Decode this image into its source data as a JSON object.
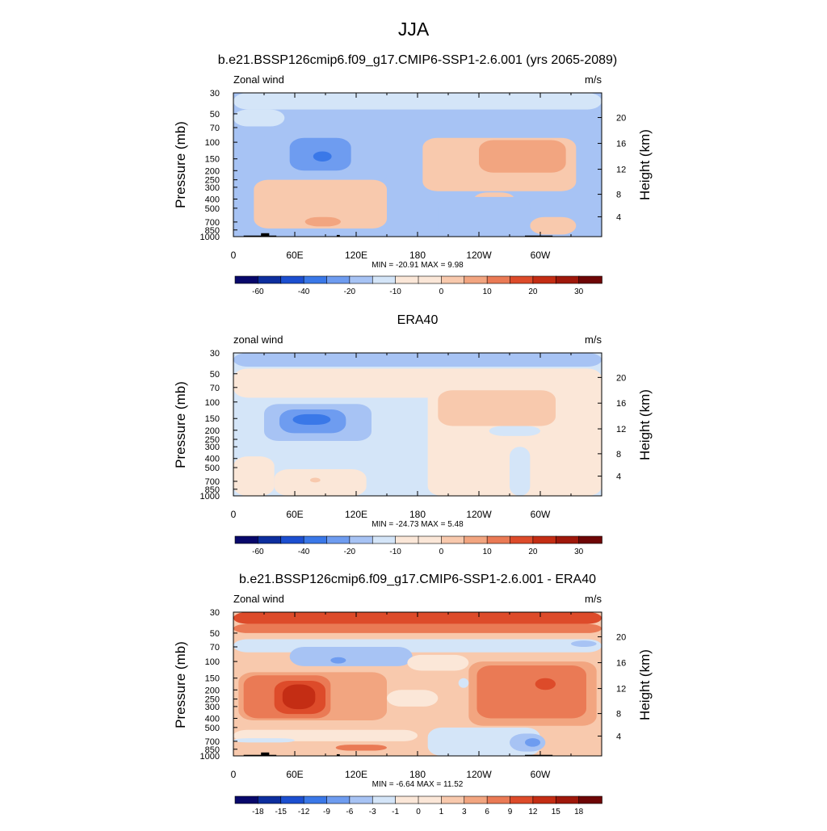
{
  "figure_title": "JJA",
  "colors": {
    "scale_full": [
      "#08086b",
      "#0d2e9e",
      "#1c4fd0",
      "#3a78e8",
      "#6e9cf0",
      "#a7c3f4",
      "#d4e5f8",
      "#fbe7d8",
      "#f8c9ad",
      "#f2a580",
      "#ea7a55",
      "#dd4b2a",
      "#c42d14",
      "#9f180b",
      "#6e0606"
    ]
  },
  "chart_data": [
    {
      "type": "contour",
      "title": "b.e21.BSSP126cmip6.f09_g17.CMIP6-SSP1-2.6.001 (yrs 2065-2089)",
      "left_label": "Zonal wind",
      "right_label": "m/s",
      "ylabel": "Pressure (mb)",
      "ylabel_right": "Height (km)",
      "x_ticks": [
        "0",
        "60E",
        "120E",
        "180",
        "120W",
        "60W"
      ],
      "x_tick_lons": [
        0,
        60,
        120,
        180,
        240,
        300
      ],
      "x_range": [
        0,
        360
      ],
      "y_ticks": [
        "30",
        "50",
        "70",
        "100",
        "150",
        "200",
        "250",
        "300",
        "400",
        "500",
        "700",
        "850",
        "1000"
      ],
      "y_tick_values": [
        30,
        50,
        70,
        100,
        150,
        200,
        250,
        300,
        400,
        500,
        700,
        850,
        1000
      ],
      "y_range": [
        30,
        1000
      ],
      "height_ticks": [
        "4",
        "8",
        "12",
        "16",
        "20"
      ],
      "height_values": [
        4,
        8,
        12,
        16,
        20
      ],
      "stats": "MIN = -20.91  MAX =   9.98",
      "min": -20.91,
      "max": 9.98,
      "background_level": 5,
      "colorbar_labels": [
        "-60",
        "-40",
        "-20",
        "-10",
        "0",
        "10",
        "20",
        "30"
      ],
      "colorbar_label_edges": [
        1,
        3,
        5,
        7,
        9,
        11,
        13,
        15
      ],
      "colorbar_levels": 16,
      "regions": [
        {
          "level": 6,
          "lon": [
            0,
            360
          ],
          "p": [
            30,
            45
          ]
        },
        {
          "level": 6,
          "lon": [
            0,
            50
          ],
          "p": [
            45,
            68
          ]
        },
        {
          "level": 5,
          "lon": [
            30,
            150
          ],
          "p": [
            70,
            280
          ]
        },
        {
          "level": 5,
          "lon": [
            80,
            190
          ],
          "p": [
            330,
            800
          ]
        },
        {
          "level": 5,
          "lon": [
            0,
            10
          ],
          "p": [
            150,
            230
          ]
        },
        {
          "level": 4,
          "lon": [
            55,
            115
          ],
          "p": [
            90,
            200
          ]
        },
        {
          "level": 3,
          "lon": [
            78,
            96
          ],
          "p": [
            125,
            160
          ]
        },
        {
          "level": 8,
          "lon": [
            185,
            335
          ],
          "p": [
            90,
            330
          ]
        },
        {
          "level": 9,
          "lon": [
            240,
            325
          ],
          "p": [
            95,
            210
          ]
        },
        {
          "level": 8,
          "lon": [
            20,
            150
          ],
          "p": [
            250,
            820
          ]
        },
        {
          "level": 9,
          "lon": [
            70,
            105
          ],
          "p": [
            620,
            780
          ]
        },
        {
          "level": 8,
          "lon": [
            235,
            275
          ],
          "p": [
            340,
            480
          ]
        },
        {
          "level": 8,
          "lon": [
            290,
            335
          ],
          "p": [
            620,
            950
          ]
        },
        {
          "level": 5,
          "lon": [
            200,
            290
          ],
          "p": [
            380,
            1000
          ]
        }
      ],
      "topography": [
        {
          "lon": [
            10,
            42
          ],
          "p": 975
        },
        {
          "lon": [
            27,
            35
          ],
          "p": 920
        },
        {
          "lon": [
            101,
            104
          ],
          "p": 960
        },
        {
          "lon": [
            285,
            312
          ],
          "p": 975
        }
      ]
    },
    {
      "type": "contour",
      "title": "ERA40",
      "left_label": "zonal wind",
      "right_label": "m/s",
      "ylabel": "Pressure (mb)",
      "ylabel_right": "Height (km)",
      "x_ticks": [
        "0",
        "60E",
        "120E",
        "180",
        "120W",
        "60W"
      ],
      "x_tick_lons": [
        0,
        60,
        120,
        180,
        240,
        300
      ],
      "x_range": [
        0,
        360
      ],
      "y_ticks": [
        "30",
        "50",
        "70",
        "100",
        "150",
        "200",
        "250",
        "300",
        "400",
        "500",
        "700",
        "850",
        "1000"
      ],
      "y_tick_values": [
        30,
        50,
        70,
        100,
        150,
        200,
        250,
        300,
        400,
        500,
        700,
        850,
        1000
      ],
      "y_range": [
        30,
        1000
      ],
      "height_ticks": [
        "4",
        "8",
        "12",
        "16",
        "20"
      ],
      "height_values": [
        4,
        8,
        12,
        16,
        20
      ],
      "stats": "MIN = -24.73  MAX =   5.48",
      "min": -24.73,
      "max": 5.48,
      "background_level": 6,
      "colorbar_labels": [
        "-60",
        "-40",
        "-20",
        "-10",
        "0",
        "10",
        "20",
        "30"
      ],
      "colorbar_label_edges": [
        1,
        3,
        5,
        7,
        9,
        11,
        13,
        15
      ],
      "colorbar_levels": 16,
      "regions": [
        {
          "level": 5,
          "lon": [
            0,
            360
          ],
          "p": [
            30,
            42
          ]
        },
        {
          "level": 7,
          "lon": [
            0,
            360
          ],
          "p": [
            44,
            90
          ]
        },
        {
          "level": 7,
          "lon": [
            190,
            360
          ],
          "p": [
            44,
            1000
          ]
        },
        {
          "level": 8,
          "lon": [
            200,
            315
          ],
          "p": [
            75,
            180
          ]
        },
        {
          "level": 7,
          "lon": [
            0,
            40
          ],
          "p": [
            380,
            1000
          ]
        },
        {
          "level": 7,
          "lon": [
            40,
            130
          ],
          "p": [
            520,
            1000
          ]
        },
        {
          "level": 8,
          "lon": [
            75,
            85
          ],
          "p": [
            640,
            720
          ]
        },
        {
          "level": 5,
          "lon": [
            30,
            135
          ],
          "p": [
            105,
            260
          ]
        },
        {
          "level": 4,
          "lon": [
            45,
            110
          ],
          "p": [
            120,
            215
          ]
        },
        {
          "level": 3,
          "lon": [
            58,
            95
          ],
          "p": [
            135,
            175
          ]
        },
        {
          "level": 6,
          "lon": [
            250,
            300
          ],
          "p": [
            180,
            230
          ]
        },
        {
          "level": 6,
          "lon": [
            270,
            290
          ],
          "p": [
            300,
            1000
          ]
        }
      ],
      "topography": []
    },
    {
      "type": "contour",
      "title": "b.e21.BSSP126cmip6.f09_g17.CMIP6-SSP1-2.6.001 - ERA40",
      "left_label": "Zonal wind",
      "right_label": "m/s",
      "ylabel": "Pressure (mb)",
      "ylabel_right": "Height (km)",
      "x_ticks": [
        "0",
        "60E",
        "120E",
        "180",
        "120W",
        "60W"
      ],
      "x_tick_lons": [
        0,
        60,
        120,
        180,
        240,
        300
      ],
      "x_range": [
        0,
        360
      ],
      "y_ticks": [
        "30",
        "50",
        "70",
        "100",
        "150",
        "200",
        "250",
        "300",
        "400",
        "500",
        "700",
        "850",
        "1000"
      ],
      "y_tick_values": [
        30,
        50,
        70,
        100,
        150,
        200,
        250,
        300,
        400,
        500,
        700,
        850,
        1000
      ],
      "y_range": [
        30,
        1000
      ],
      "height_ticks": [
        "4",
        "8",
        "12",
        "16",
        "20"
      ],
      "height_values": [
        4,
        8,
        12,
        16,
        20
      ],
      "stats": "MIN =  -6.64  MAX =  11.52",
      "min": -6.64,
      "max": 11.52,
      "background_level": 8,
      "colorbar_labels": [
        "-18",
        "-15",
        "-12",
        "-9",
        "-6",
        "-3",
        "-1",
        "0",
        "1",
        "3",
        "6",
        "9",
        "12",
        "15",
        "18"
      ],
      "colorbar_label_edges": [
        1,
        2,
        3,
        4,
        5,
        6,
        7,
        8,
        9,
        10,
        11,
        12,
        13,
        14,
        15
      ],
      "colorbar_levels": 16,
      "regions": [
        {
          "level": 11,
          "lon": [
            0,
            360
          ],
          "p": [
            30,
            40
          ]
        },
        {
          "level": 10,
          "lon": [
            0,
            360
          ],
          "p": [
            40,
            50
          ]
        },
        {
          "level": 6,
          "lon": [
            0,
            360
          ],
          "p": [
            58,
            80
          ]
        },
        {
          "level": 5,
          "lon": [
            55,
            175
          ],
          "p": [
            70,
            112
          ]
        },
        {
          "level": 4,
          "lon": [
            95,
            110
          ],
          "p": [
            90,
            105
          ]
        },
        {
          "level": 5,
          "lon": [
            330,
            355
          ],
          "p": [
            60,
            70
          ]
        },
        {
          "level": 7,
          "lon": [
            170,
            230
          ],
          "p": [
            85,
            125
          ]
        },
        {
          "level": 9,
          "lon": [
            5,
            150
          ],
          "p": [
            130,
            420
          ]
        },
        {
          "level": 10,
          "lon": [
            10,
            95
          ],
          "p": [
            140,
            400
          ]
        },
        {
          "level": 11,
          "lon": [
            40,
            90
          ],
          "p": [
            160,
            360
          ]
        },
        {
          "level": 12,
          "lon": [
            48,
            80
          ],
          "p": [
            175,
            320
          ]
        },
        {
          "level": 9,
          "lon": [
            230,
            355
          ],
          "p": [
            100,
            480
          ]
        },
        {
          "level": 10,
          "lon": [
            238,
            345
          ],
          "p": [
            110,
            400
          ]
        },
        {
          "level": 11,
          "lon": [
            295,
            315
          ],
          "p": [
            150,
            200
          ]
        },
        {
          "level": 7,
          "lon": [
            150,
            200
          ],
          "p": [
            200,
            300
          ]
        },
        {
          "level": 6,
          "lon": [
            220,
            230
          ],
          "p": [
            150,
            190
          ]
        },
        {
          "level": 7,
          "lon": [
            0,
            180
          ],
          "p": [
            530,
            700
          ]
        },
        {
          "level": 6,
          "lon": [
            190,
            300
          ],
          "p": [
            500,
            1000
          ]
        },
        {
          "level": 5,
          "lon": [
            270,
            305
          ],
          "p": [
            580,
            900
          ]
        },
        {
          "level": 4,
          "lon": [
            285,
            300
          ],
          "p": [
            650,
            800
          ]
        },
        {
          "level": 6,
          "lon": [
            0,
            60
          ],
          "p": [
            650,
            720
          ]
        },
        {
          "level": 10,
          "lon": [
            100,
            150
          ],
          "p": [
            760,
            880
          ]
        }
      ],
      "topography": [
        {
          "lon": [
            10,
            42
          ],
          "p": 975
        },
        {
          "lon": [
            27,
            35
          ],
          "p": 920
        },
        {
          "lon": [
            101,
            104
          ],
          "p": 960
        },
        {
          "lon": [
            285,
            312
          ],
          "p": 975
        }
      ]
    }
  ]
}
